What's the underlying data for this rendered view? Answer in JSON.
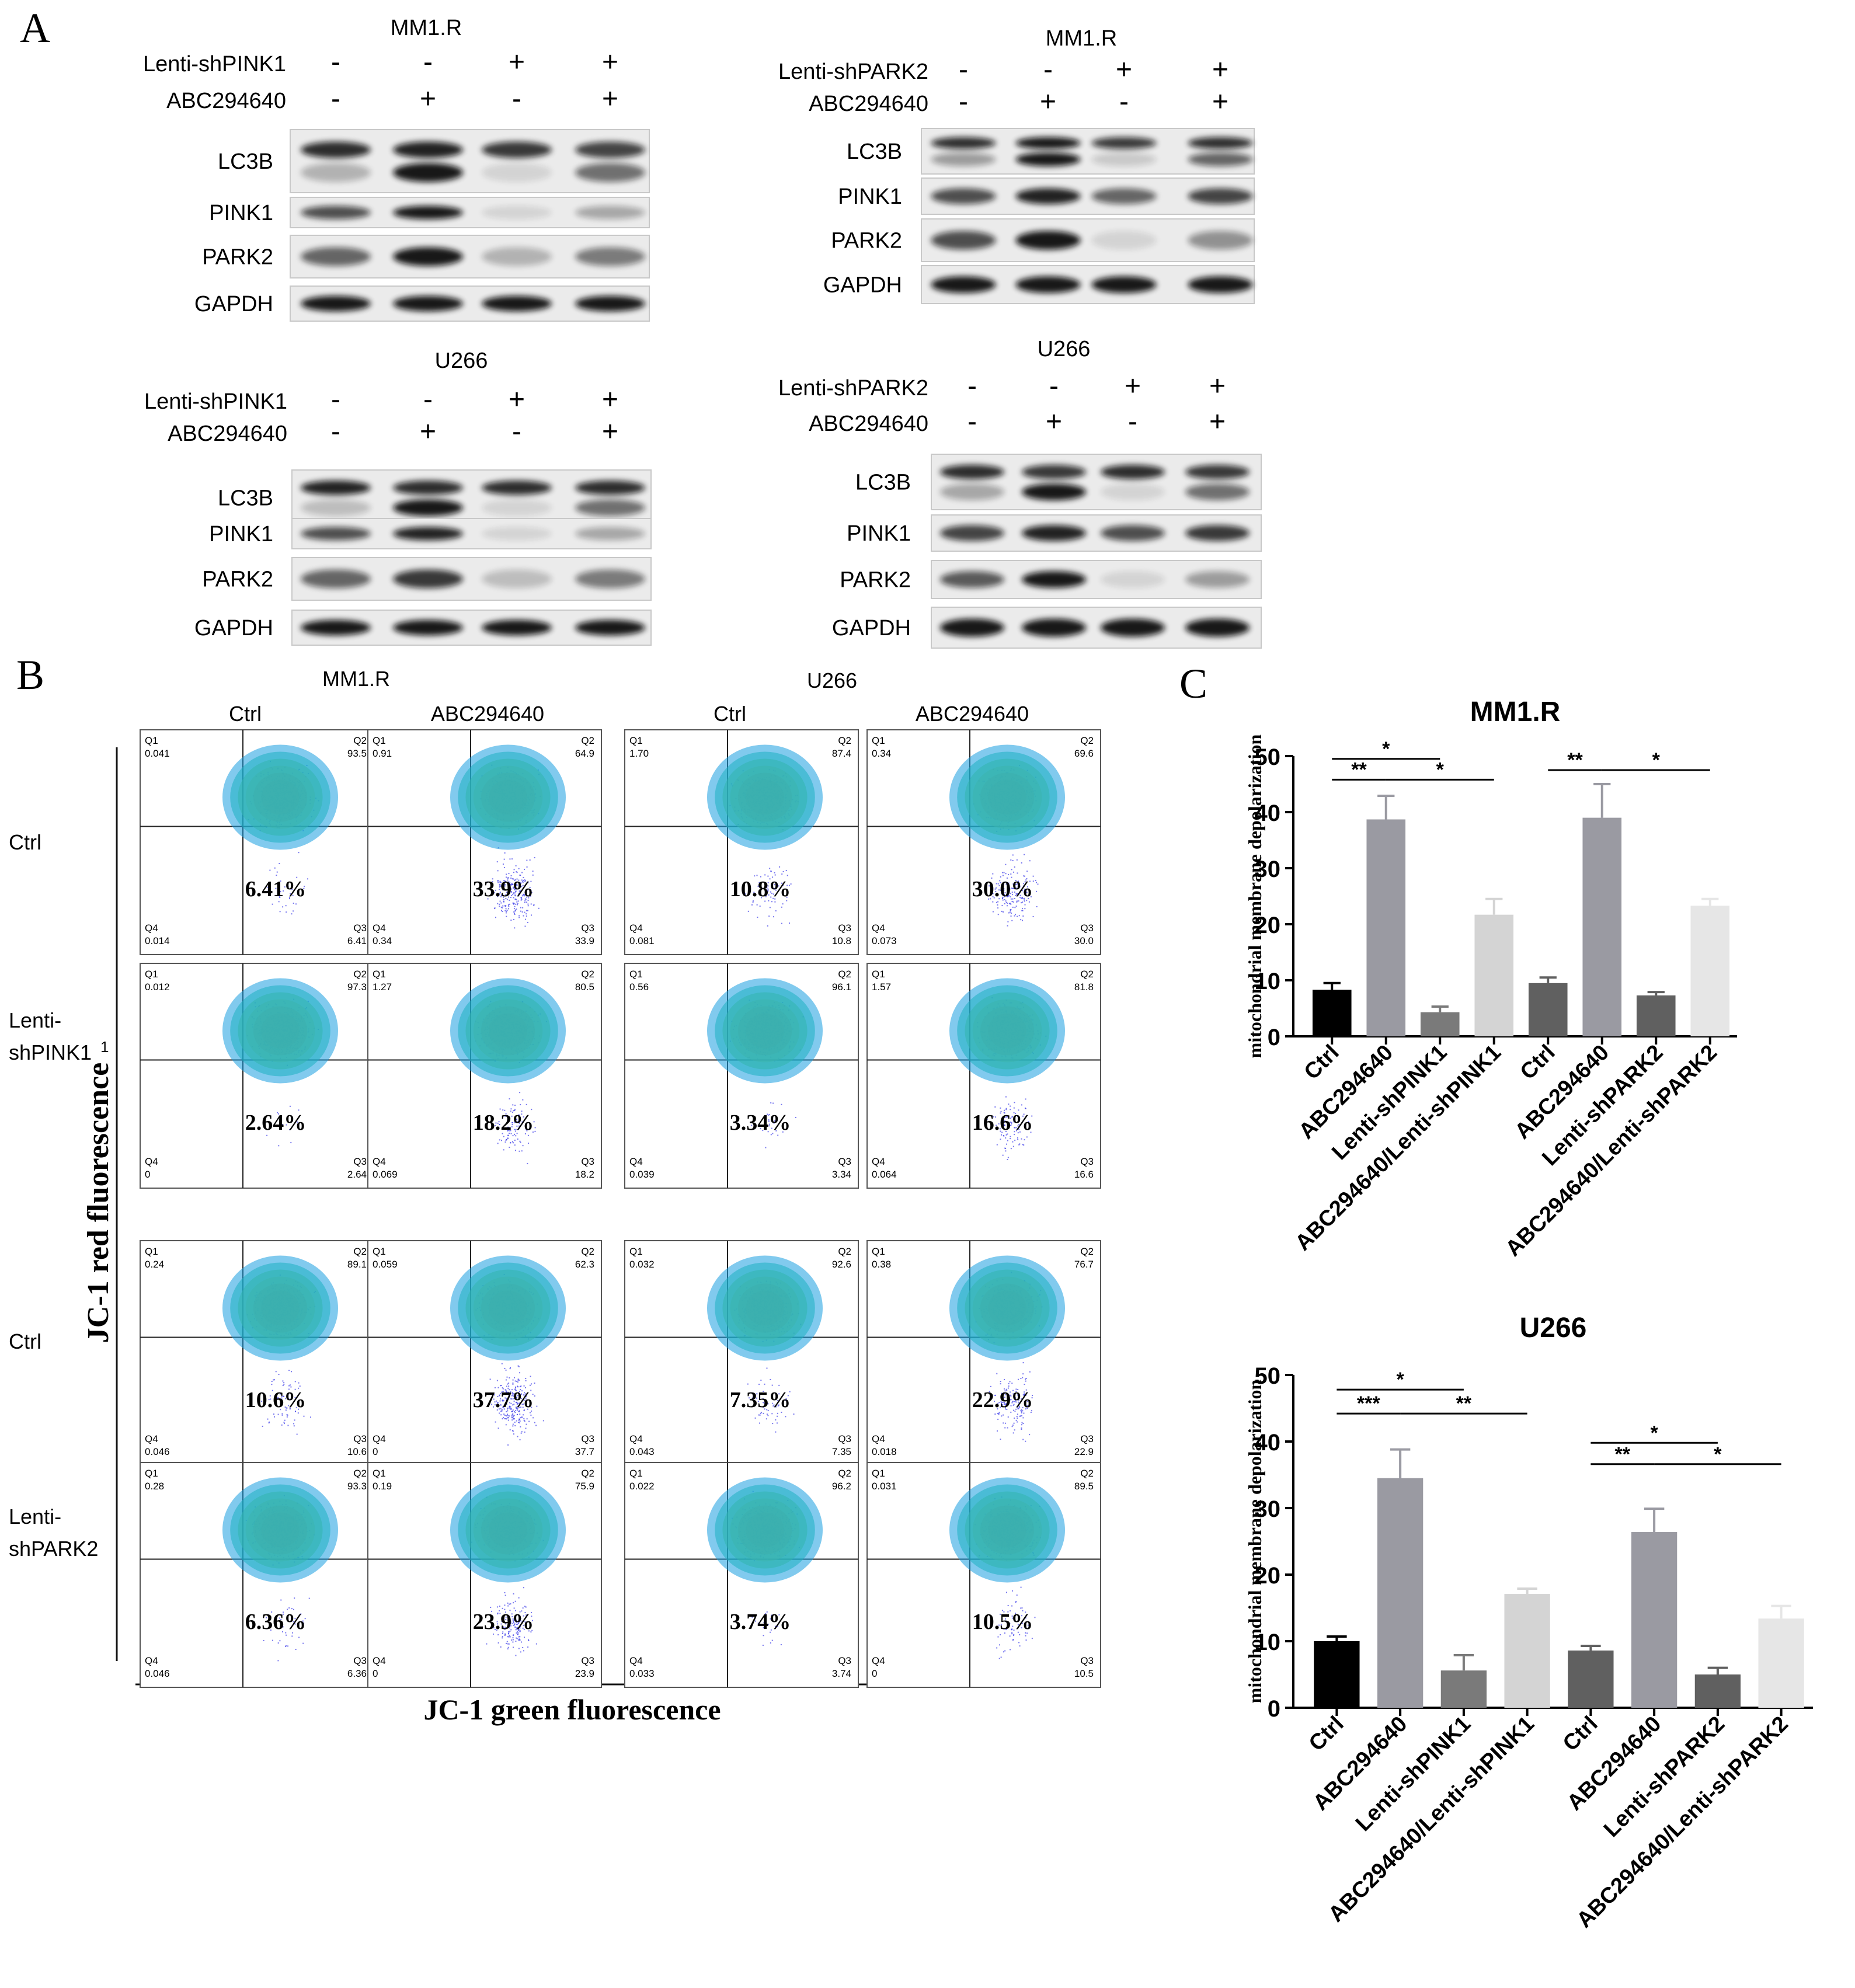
{
  "panel_labels": {
    "a": "A",
    "b": "B",
    "c": "C"
  },
  "panel_a": {
    "blots": [
      {
        "cell": "MM1.R",
        "row1_label": "Lenti-shPINK1",
        "row1": [
          "-",
          "-",
          "+",
          "+"
        ],
        "row2_label": "ABC294640",
        "row2": [
          "-",
          "+",
          "-",
          "+"
        ],
        "bands": [
          "LC3B",
          "PINK1",
          "PARK2",
          "GAPDH"
        ],
        "intensity": {
          "LC3B": [
            0.85,
            0.9,
            0.8,
            0.75
          ],
          "LC3B_lower": [
            0.25,
            0.95,
            0.1,
            0.55
          ],
          "PINK1": [
            0.7,
            0.95,
            0.1,
            0.3
          ],
          "PARK2": [
            0.6,
            0.95,
            0.25,
            0.5
          ],
          "GAPDH": [
            0.95,
            0.95,
            0.95,
            0.95
          ]
        }
      },
      {
        "cell": "MM1.R",
        "row1_label": "Lenti-shPARK2",
        "row1": [
          "-",
          "-",
          "+",
          "+"
        ],
        "row2_label": "ABC294640",
        "row2": [
          "-",
          "+",
          "-",
          "+"
        ],
        "bands": [
          "LC3B",
          "PINK1",
          "PARK2",
          "GAPDH"
        ],
        "intensity": {
          "LC3B": [
            0.85,
            0.95,
            0.8,
            0.85
          ],
          "LC3B_lower": [
            0.35,
            0.95,
            0.15,
            0.6
          ],
          "PINK1": [
            0.7,
            0.9,
            0.6,
            0.75
          ],
          "PARK2": [
            0.7,
            0.95,
            0.1,
            0.4
          ],
          "GAPDH": [
            0.95,
            0.95,
            0.95,
            0.95
          ]
        }
      },
      {
        "cell": "U266",
        "row1_label": "Lenti-shPINK1",
        "row1": [
          "-",
          "-",
          "+",
          "+"
        ],
        "row2_label": "ABC294640",
        "row2": [
          "-",
          "+",
          "-",
          "+"
        ],
        "bands": [
          "LC3B",
          "PINK1",
          "PARK2",
          "GAPDH"
        ],
        "intensity": {
          "LC3B": [
            0.9,
            0.85,
            0.85,
            0.85
          ],
          "LC3B_lower": [
            0.2,
            0.95,
            0.1,
            0.55
          ],
          "PINK1": [
            0.7,
            0.9,
            0.1,
            0.3
          ],
          "PARK2": [
            0.6,
            0.8,
            0.2,
            0.5
          ],
          "GAPDH": [
            0.95,
            0.95,
            0.95,
            0.95
          ]
        }
      },
      {
        "cell": "U266",
        "row1_label": "Lenti-shPARK2",
        "row1": [
          "-",
          "-",
          "+",
          "+"
        ],
        "row2_label": "ABC294640",
        "row2": [
          "-",
          "+",
          "-",
          "+"
        ],
        "bands": [
          "LC3B",
          "PINK1",
          "PARK2",
          "GAPDH"
        ],
        "intensity": {
          "LC3B": [
            0.85,
            0.8,
            0.85,
            0.8
          ],
          "LC3B_lower": [
            0.3,
            0.95,
            0.1,
            0.55
          ],
          "PINK1": [
            0.75,
            0.9,
            0.7,
            0.8
          ],
          "PARK2": [
            0.65,
            0.95,
            0.1,
            0.35
          ],
          "GAPDH": [
            0.95,
            0.95,
            0.95,
            0.95
          ]
        }
      }
    ]
  },
  "panel_b": {
    "cell_headers": [
      "MM1.R",
      "U266"
    ],
    "col_headers": [
      "Ctrl",
      "ABC294640",
      "Ctrl",
      "ABC294640"
    ],
    "row_labels": [
      "Ctrl",
      "Lenti-\nshPINK1",
      "Ctrl",
      "Lenti-\nshPARK2"
    ],
    "stray_mark": "1",
    "y_axis": "JC-1 red fluorescence",
    "x_axis": "JC-1 green fluorescence",
    "plots": [
      [
        {
          "q1": "0.041",
          "q2": "93.5",
          "q3": "6.41",
          "q4": "0.014",
          "pct": "6.41%"
        },
        {
          "q1": "0.91",
          "q2": "64.9",
          "q3": "33.9",
          "q4": "0.34",
          "pct": "33.9%"
        },
        {
          "q1": "1.70",
          "q2": "87.4",
          "q3": "10.8",
          "q4": "0.081",
          "pct": "10.8%"
        },
        {
          "q1": "0.34",
          "q2": "69.6",
          "q3": "30.0",
          "q4": "0.073",
          "pct": "30.0%"
        }
      ],
      [
        {
          "q1": "0.012",
          "q2": "97.3",
          "q3": "2.64",
          "q4": "0",
          "pct": "2.64%"
        },
        {
          "q1": "1.27",
          "q2": "80.5",
          "q3": "18.2",
          "q4": "0.069",
          "pct": "18.2%"
        },
        {
          "q1": "0.56",
          "q2": "96.1",
          "q3": "3.34",
          "q4": "0.039",
          "pct": "3.34%"
        },
        {
          "q1": "1.57",
          "q2": "81.8",
          "q3": "16.6",
          "q4": "0.064",
          "pct": "16.6%"
        }
      ],
      [
        {
          "q1": "0.24",
          "q2": "89.1",
          "q3": "10.6",
          "q4": "0.046",
          "pct": "10.6%"
        },
        {
          "q1": "0.059",
          "q2": "62.3",
          "q3": "37.7",
          "q4": "0",
          "pct": "37.7%"
        },
        {
          "q1": "0.032",
          "q2": "92.6",
          "q3": "7.35",
          "q4": "0.043",
          "pct": "7.35%"
        },
        {
          "q1": "0.38",
          "q2": "76.7",
          "q3": "22.9",
          "q4": "0.018",
          "pct": "22.9%"
        }
      ],
      [
        {
          "q1": "0.28",
          "q2": "93.3",
          "q3": "6.36",
          "q4": "0.046",
          "pct": "6.36%"
        },
        {
          "q1": "0.19",
          "q2": "75.9",
          "q3": "23.9",
          "q4": "0",
          "pct": "23.9%"
        },
        {
          "q1": "0.022",
          "q2": "96.2",
          "q3": "3.74",
          "q4": "0.033",
          "pct": "3.74%"
        },
        {
          "q1": "0.031",
          "q2": "89.5",
          "q3": "10.5",
          "q4": "0",
          "pct": "10.5%"
        }
      ]
    ],
    "q_labels": {
      "q1": "Q1",
      "q2": "Q2",
      "q3": "Q3",
      "q4": "Q4"
    }
  },
  "chart_data": [
    {
      "type": "bar",
      "title": "MM1.R",
      "ylabel": "mitochondrial membrane depolarization",
      "ylim": [
        0,
        50
      ],
      "yticks": [
        0,
        10,
        20,
        30,
        40,
        50
      ],
      "categories": [
        "Ctrl",
        "ABC294640",
        "Lenti-shPINK1",
        "ABC294640/Lenti-shPINK1",
        "Ctrl",
        "ABC294640",
        "Lenti-shPARK2",
        "ABC294640/Lenti-shPARK2"
      ],
      "values": [
        8.3,
        38.7,
        4.3,
        21.7,
        9.5,
        39.0,
        7.3,
        23.3
      ],
      "errors": [
        1.2,
        4.2,
        1.0,
        2.8,
        1.0,
        6.0,
        0.6,
        1.2
      ],
      "colors": [
        "#000000",
        "#9a9aa2",
        "#7a7a7a",
        "#d4d4d4",
        "#606060",
        "#9a9aa2",
        "#606060",
        "#e6e6e6"
      ],
      "significance": [
        {
          "from": 0,
          "to": 2,
          "label": "*",
          "y": 49.5
        },
        {
          "from": 0,
          "to": 1,
          "label": "**",
          "y": 45.8
        },
        {
          "from": 1,
          "to": 3,
          "label": "*",
          "y": 45.8
        },
        {
          "from": 4,
          "to": 5,
          "label": "**",
          "y": 47.5
        },
        {
          "from": 5,
          "to": 7,
          "label": "*",
          "y": 47.5
        }
      ]
    },
    {
      "type": "bar",
      "title": "U266",
      "ylabel": "mitochondrial membrane depolarization",
      "ylim": [
        0,
        50
      ],
      "yticks": [
        0,
        10,
        20,
        30,
        40,
        50
      ],
      "categories": [
        "Ctrl",
        "ABC294640",
        "Lenti-shPINK1",
        "ABC294640/Lenti-shPINK1",
        "Ctrl",
        "ABC294640",
        "Lenti-shPARK2",
        "ABC294640/Lenti-shPARK2"
      ],
      "values": [
        10.0,
        34.5,
        5.6,
        17.1,
        8.6,
        26.4,
        5.0,
        13.4
      ],
      "errors": [
        0.7,
        4.3,
        2.3,
        0.8,
        0.7,
        3.5,
        1.0,
        1.9
      ],
      "colors": [
        "#000000",
        "#9a9aa2",
        "#7a7a7a",
        "#d4d4d4",
        "#606060",
        "#9a9aa2",
        "#606060",
        "#e6e6e6"
      ],
      "significance": [
        {
          "from": 0,
          "to": 2,
          "label": "*",
          "y": 47.8
        },
        {
          "from": 0,
          "to": 1,
          "label": "***",
          "y": 44.2
        },
        {
          "from": 1,
          "to": 3,
          "label": "**",
          "y": 44.2
        },
        {
          "from": 4,
          "to": 6,
          "label": "*",
          "y": 39.8
        },
        {
          "from": 4,
          "to": 5,
          "label": "**",
          "y": 36.6
        },
        {
          "from": 5,
          "to": 7,
          "label": "*",
          "y": 36.6
        }
      ]
    }
  ]
}
